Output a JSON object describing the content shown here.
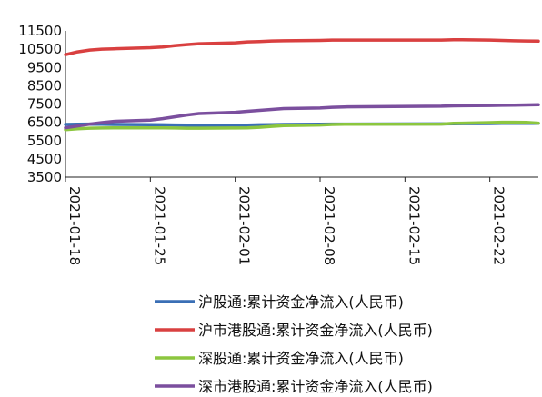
{
  "chart_data": {
    "type": "line",
    "title": "",
    "xlabel": "",
    "ylabel": "",
    "ylim": [
      3500,
      11500
    ],
    "yticks": [
      3500,
      4500,
      5500,
      6500,
      7500,
      8500,
      9500,
      10500,
      11500
    ],
    "ytick_labels": [
      "3500",
      "4500",
      "5500",
      "6500",
      "7500",
      "8500",
      "9500",
      "10500",
      "11500"
    ],
    "xlim": [
      "2021-01-18",
      "2021-02-26"
    ],
    "xticks": [
      "2021-01-18",
      "2021-01-25",
      "2021-02-01",
      "2021-02-08",
      "2021-02-15",
      "2021-02-22"
    ],
    "grid": false,
    "legend_position": "bottom",
    "x": [
      "2021-01-18",
      "2021-01-19",
      "2021-01-20",
      "2021-01-21",
      "2021-01-22",
      "2021-01-25",
      "2021-01-26",
      "2021-01-27",
      "2021-01-28",
      "2021-01-29",
      "2021-02-01",
      "2021-02-02",
      "2021-02-03",
      "2021-02-04",
      "2021-02-05",
      "2021-02-08",
      "2021-02-09",
      "2021-02-10",
      "2021-02-18",
      "2021-02-19",
      "2021-02-22",
      "2021-02-23",
      "2021-02-24",
      "2021-02-25",
      "2021-02-26"
    ],
    "series": [
      {
        "name": "沪股通:累计资金净流入(人民币)",
        "color": "#3a6fb5",
        "values": [
          6380,
          6390,
          6400,
          6390,
          6380,
          6370,
          6360,
          6350,
          6340,
          6330,
          6330,
          6340,
          6360,
          6370,
          6380,
          6390,
          6400,
          6400,
          6410,
          6420,
          6430,
          6440,
          6440,
          6440,
          6440
        ]
      },
      {
        "name": "沪市港股通:累计资金净流入(人民币)",
        "color": "#d94040",
        "values": [
          10200,
          10350,
          10450,
          10500,
          10520,
          10580,
          10620,
          10690,
          10750,
          10800,
          10850,
          10900,
          10920,
          10950,
          10960,
          10980,
          11000,
          11000,
          11000,
          11020,
          11000,
          10980,
          10960,
          10950,
          10940
        ]
      },
      {
        "name": "深股通:累计资金净流入(人民币)",
        "color": "#8cc63f",
        "values": [
          6100,
          6150,
          6180,
          6190,
          6200,
          6200,
          6200,
          6190,
          6180,
          6180,
          6190,
          6200,
          6230,
          6280,
          6320,
          6350,
          6380,
          6390,
          6400,
          6440,
          6480,
          6500,
          6500,
          6490,
          6450
        ]
      },
      {
        "name": "深市港股通:累计资金净流入(人民币)",
        "color": "#7b4f9e",
        "values": [
          6200,
          6300,
          6400,
          6480,
          6550,
          6620,
          6700,
          6800,
          6900,
          6980,
          7050,
          7100,
          7150,
          7200,
          7250,
          7280,
          7320,
          7340,
          7380,
          7400,
          7420,
          7430,
          7440,
          7450,
          7460
        ]
      }
    ]
  }
}
